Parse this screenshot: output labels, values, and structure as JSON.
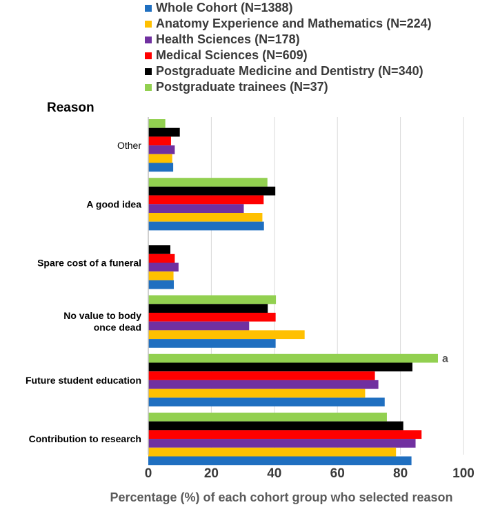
{
  "chart_data": {
    "type": "bar",
    "orientation": "horizontal",
    "heading": "Reason",
    "xlabel": "Percentage (%) of each cohort group who selected reason",
    "xlim": [
      0,
      100
    ],
    "xticks": [
      0,
      20,
      40,
      60,
      80,
      100
    ],
    "grid": true,
    "legend_position": "top",
    "categories": [
      {
        "label": "Other",
        "lines": [
          "Other"
        ],
        "bold": false
      },
      {
        "label": "A good idea",
        "lines": [
          "A good idea"
        ],
        "bold": true
      },
      {
        "label": "Spare cost of a funeral",
        "lines": [
          "Spare cost of a funeral"
        ],
        "bold": true
      },
      {
        "label": "No value to body once dead",
        "lines": [
          "No value to body",
          "once dead"
        ],
        "bold": true
      },
      {
        "label": "Future student education",
        "lines": [
          "Future student education"
        ],
        "bold": true
      },
      {
        "label": "Contribution to research",
        "lines": [
          "Contribution to research"
        ],
        "bold": true
      }
    ],
    "series": [
      {
        "name": "Postgraduate trainees (N=37)",
        "color": "#92d050",
        "values": [
          5.4,
          37.8,
          0,
          40.5,
          91.9,
          75.7
        ]
      },
      {
        "name": "Postgraduate Medicine and Dentistry (N=340)",
        "color": "#000000",
        "values": [
          10,
          40.3,
          7,
          37.9,
          83.8,
          80.9
        ]
      },
      {
        "name": "Medical Sciences (N=609)",
        "color": "#ff0000",
        "values": [
          7.2,
          36.6,
          8.4,
          40.4,
          71.9,
          86.7
        ]
      },
      {
        "name": "Health Sciences (N=178)",
        "color": "#7030a0",
        "values": [
          8.4,
          30.3,
          9.6,
          32,
          73,
          84.8
        ]
      },
      {
        "name": "Anatomy Experience and Mathematics (N=224)",
        "color": "#ffc000",
        "values": [
          7.6,
          36.2,
          8,
          49.6,
          68.8,
          78.6
        ]
      },
      {
        "name": "Whole Cohort (N=1388)",
        "color": "#1f6fc0",
        "values": [
          7.9,
          36.7,
          8.1,
          40.4,
          75,
          83.5
        ]
      }
    ],
    "annotations": [
      {
        "text": "a",
        "category": "Future student education",
        "series": "Postgraduate trainees (N=37)"
      }
    ]
  }
}
